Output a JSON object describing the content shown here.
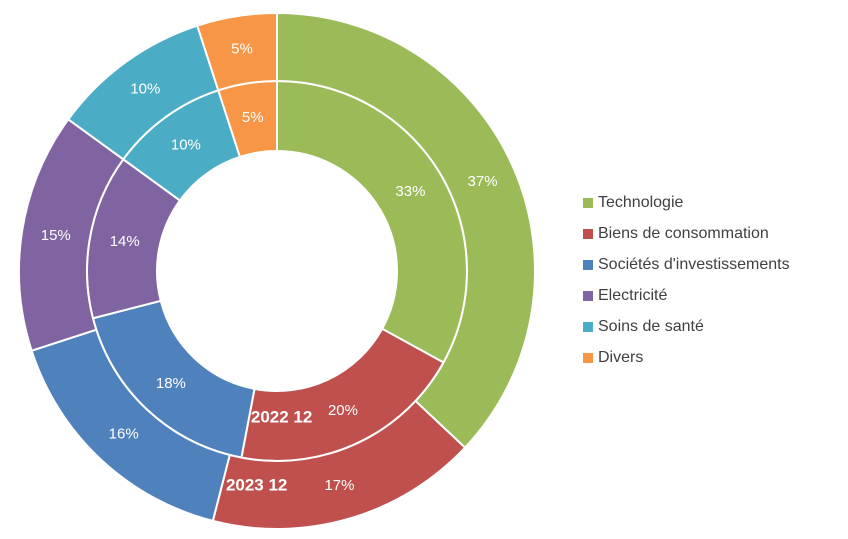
{
  "chart_data": {
    "type": "donut",
    "categories": [
      "Technologie",
      "Biens de consommation",
      "Sociétés d'investissements",
      "Electricité",
      "Soins de santé",
      "Divers"
    ],
    "colors": [
      "#9bbb59",
      "#c0504d",
      "#4f81bd",
      "#8064a2",
      "#4bacc6",
      "#f79646"
    ],
    "series": [
      {
        "name": "2022 12",
        "values": [
          33,
          20,
          18,
          14,
          10,
          5
        ],
        "value_labels": [
          "33%",
          "20%",
          "18%",
          "14%",
          "10%",
          "5%"
        ]
      },
      {
        "name": "2023 12",
        "values": [
          37,
          17,
          16,
          15,
          10,
          5
        ],
        "value_labels": [
          "37%",
          "17%",
          "16%",
          "15%",
          "10%",
          "5%"
        ]
      }
    ],
    "legend": "right"
  }
}
